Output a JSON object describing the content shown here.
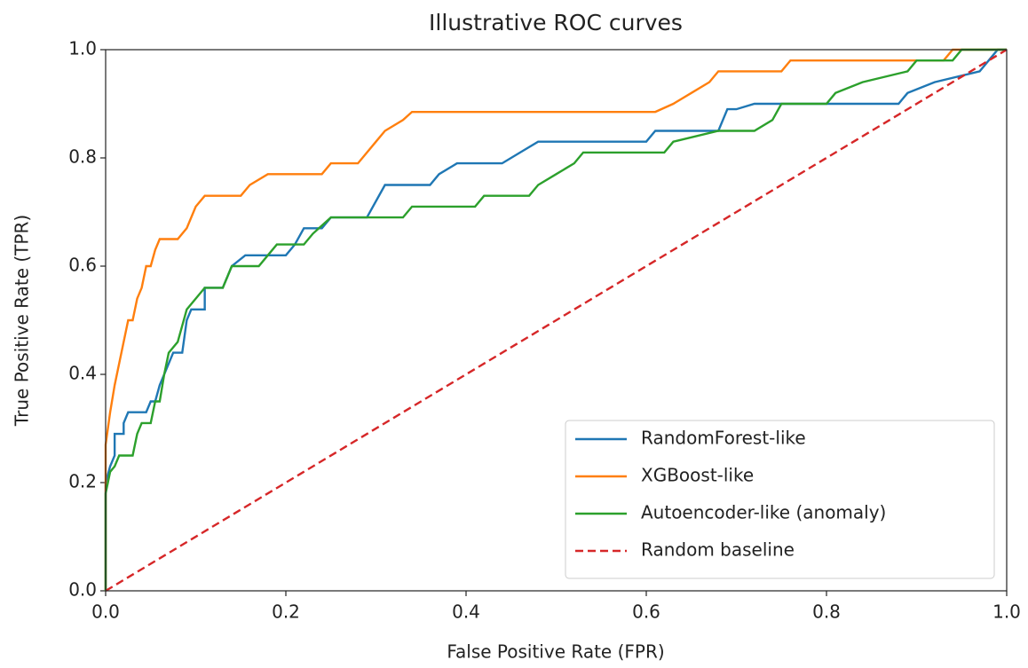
{
  "chart_data": {
    "type": "line",
    "title": "Illustrative ROC curves",
    "xlabel": "False Positive Rate (FPR)",
    "ylabel": "True Positive Rate (TPR)",
    "xlim": [
      0,
      1
    ],
    "ylim": [
      0,
      1
    ],
    "xticks": [
      {
        "value": 0,
        "label": "0.0"
      },
      0.2,
      0.4,
      0.6,
      0.8,
      {
        "value": 1,
        "label": "1.0"
      }
    ],
    "yticks": [
      {
        "value": 0,
        "label": "0.0"
      },
      0.2,
      0.4,
      0.6,
      0.8,
      {
        "value": 1,
        "label": "1.0"
      }
    ],
    "grid": false,
    "legend": "lower right",
    "series": [
      {
        "name": "RandomForest-like",
        "color": "#1f77b4",
        "linestyle": "solid",
        "x": [
          0,
          0,
          0.005,
          0.01,
          0.01,
          0.02,
          0.02,
          0.025,
          0.045,
          0.05,
          0.055,
          0.06,
          0.065,
          0.07,
          0.075,
          0.085,
          0.09,
          0.095,
          0.11,
          0.11,
          0.13,
          0.14,
          0.155,
          0.2,
          0.21,
          0.22,
          0.24,
          0.25,
          0.29,
          0.31,
          0.36,
          0.37,
          0.39,
          0.44,
          0.46,
          0.48,
          0.6,
          0.61,
          0.68,
          0.69,
          0.7,
          0.72,
          0.88,
          0.89,
          0.92,
          0.97,
          0.98,
          0.99,
          1
        ],
        "values": [
          0,
          0.2,
          0.23,
          0.25,
          0.29,
          0.29,
          0.31,
          0.33,
          0.33,
          0.35,
          0.35,
          0.38,
          0.4,
          0.42,
          0.44,
          0.44,
          0.5,
          0.52,
          0.52,
          0.56,
          0.56,
          0.6,
          0.62,
          0.62,
          0.64,
          0.67,
          0.67,
          0.69,
          0.69,
          0.75,
          0.75,
          0.77,
          0.79,
          0.79,
          0.81,
          0.83,
          0.83,
          0.85,
          0.85,
          0.89,
          0.89,
          0.9,
          0.9,
          0.92,
          0.94,
          0.96,
          0.98,
          1,
          1
        ]
      },
      {
        "name": "XGBoost-like",
        "color": "#ff7f0e",
        "linestyle": "solid",
        "x": [
          0,
          0,
          0.005,
          0.01,
          0.015,
          0.02,
          0.025,
          0.03,
          0.035,
          0.04,
          0.045,
          0.05,
          0.055,
          0.06,
          0.08,
          0.09,
          0.1,
          0.11,
          0.15,
          0.16,
          0.18,
          0.24,
          0.25,
          0.28,
          0.3,
          0.31,
          0.33,
          0.34,
          0.61,
          0.63,
          0.65,
          0.67,
          0.68,
          0.75,
          0.76,
          0.93,
          0.94,
          1
        ],
        "values": [
          0,
          0.27,
          0.33,
          0.38,
          0.42,
          0.46,
          0.5,
          0.5,
          0.54,
          0.56,
          0.6,
          0.6,
          0.63,
          0.65,
          0.65,
          0.67,
          0.71,
          0.73,
          0.73,
          0.75,
          0.77,
          0.77,
          0.79,
          0.79,
          0.83,
          0.85,
          0.87,
          0.885,
          0.885,
          0.9,
          0.92,
          0.94,
          0.96,
          0.96,
          0.98,
          0.98,
          1,
          1
        ]
      },
      {
        "name": "Autoencoder-like (anomaly)",
        "color": "#2ca02c",
        "linestyle": "solid",
        "x": [
          0,
          0,
          0.005,
          0.01,
          0.015,
          0.03,
          0.035,
          0.04,
          0.05,
          0.055,
          0.06,
          0.065,
          0.07,
          0.08,
          0.09,
          0.1,
          0.11,
          0.13,
          0.14,
          0.17,
          0.18,
          0.19,
          0.22,
          0.23,
          0.25,
          0.33,
          0.34,
          0.41,
          0.42,
          0.47,
          0.48,
          0.5,
          0.52,
          0.53,
          0.62,
          0.63,
          0.68,
          0.72,
          0.74,
          0.75,
          0.8,
          0.81,
          0.84,
          0.89,
          0.9,
          0.94,
          0.95,
          1
        ],
        "values": [
          0,
          0.18,
          0.22,
          0.23,
          0.25,
          0.25,
          0.29,
          0.31,
          0.31,
          0.35,
          0.35,
          0.4,
          0.44,
          0.46,
          0.52,
          0.54,
          0.56,
          0.56,
          0.6,
          0.6,
          0.62,
          0.64,
          0.64,
          0.66,
          0.69,
          0.69,
          0.71,
          0.71,
          0.73,
          0.73,
          0.75,
          0.77,
          0.79,
          0.81,
          0.81,
          0.83,
          0.85,
          0.85,
          0.87,
          0.9,
          0.9,
          0.92,
          0.94,
          0.96,
          0.98,
          0.98,
          1,
          1
        ]
      },
      {
        "name": "Random baseline",
        "color": "#d62728",
        "linestyle": "dashed",
        "x": [
          0,
          1
        ],
        "values": [
          0,
          1
        ]
      }
    ]
  }
}
